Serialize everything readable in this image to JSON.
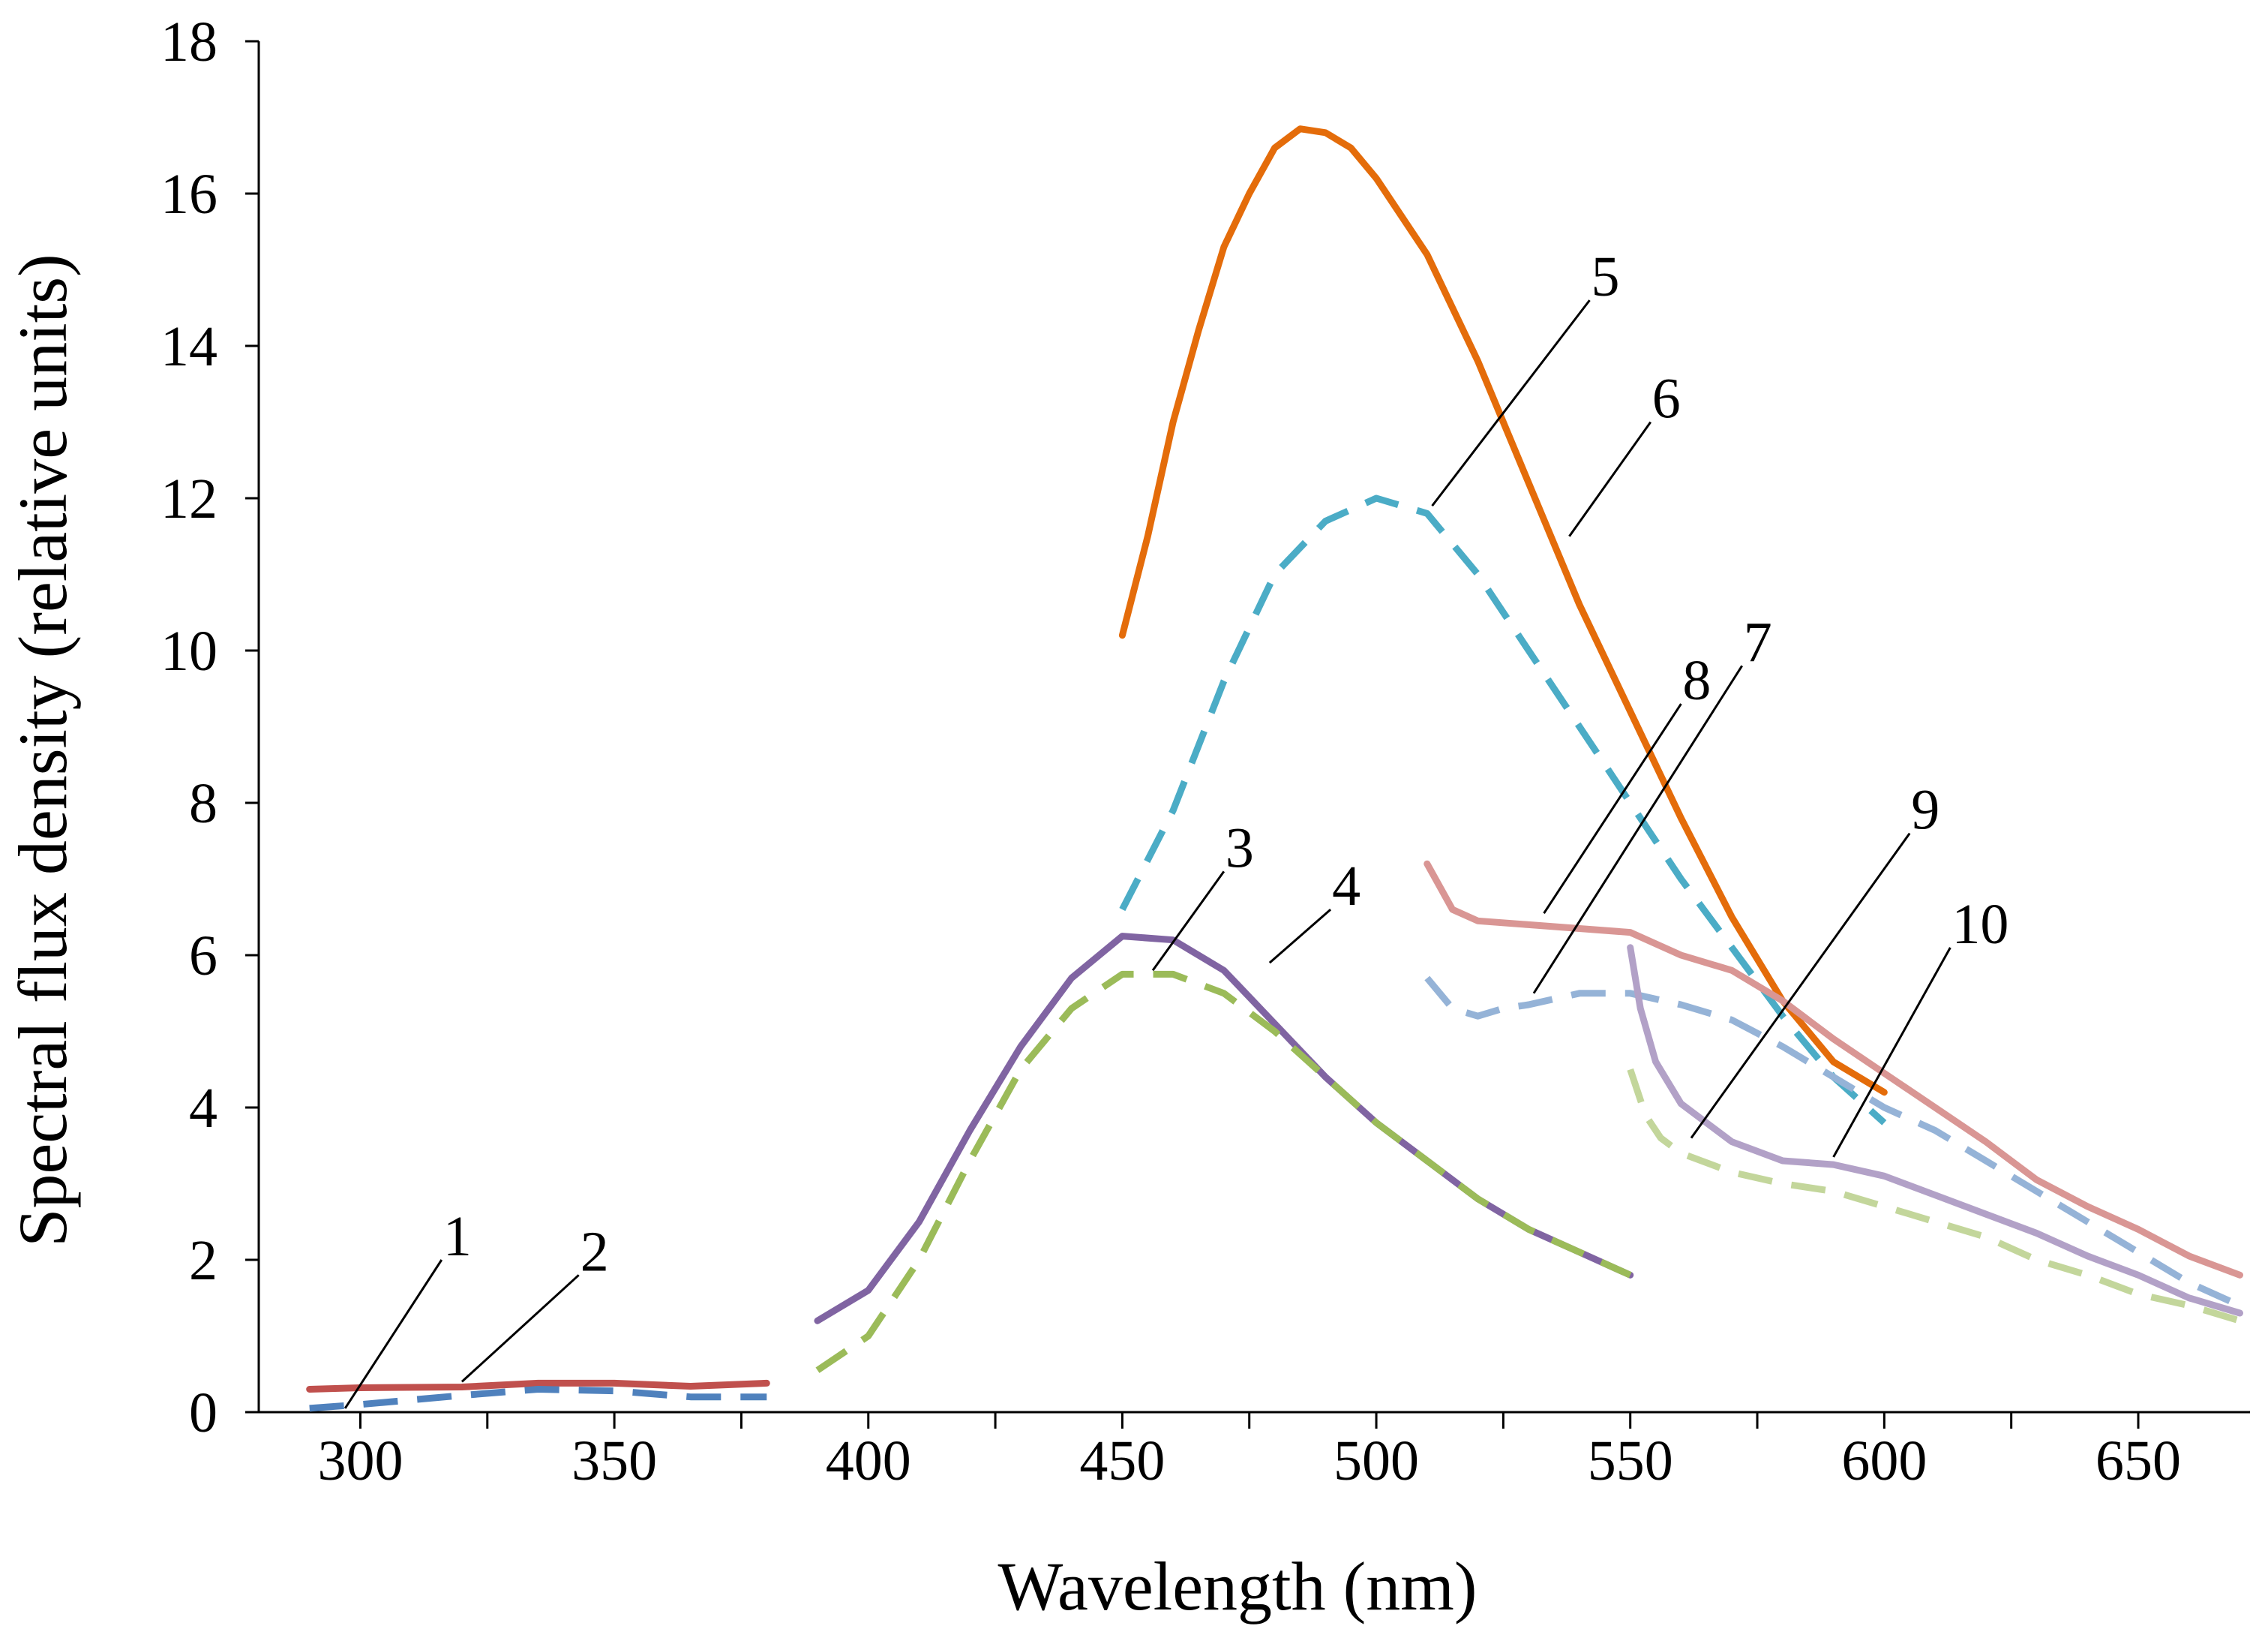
{
  "chart_data": {
    "type": "line",
    "title": "",
    "xlabel": "Wavelength (nm)",
    "ylabel": "Spectral flux density (relative units)",
    "xlim": [
      280,
      672
    ],
    "ylim": [
      0,
      18
    ],
    "x_ticks": [
      300,
      350,
      400,
      450,
      500,
      550,
      600,
      650
    ],
    "y_ticks": [
      0,
      2,
      4,
      6,
      8,
      10,
      12,
      14,
      16,
      18
    ],
    "grid": false,
    "series": [
      {
        "name": "1",
        "color": "#c0504d",
        "style": "solid",
        "x": [
          290,
          300,
          320,
          335,
          350,
          365,
          380
        ],
        "y": [
          0.3,
          0.32,
          0.33,
          0.38,
          0.38,
          0.34,
          0.38
        ]
      },
      {
        "name": "2",
        "color": "#4f81bd",
        "style": "dashed",
        "x": [
          290,
          300,
          320,
          335,
          350,
          365,
          380
        ],
        "y": [
          0.05,
          0.1,
          0.22,
          0.3,
          0.28,
          0.2,
          0.2
        ]
      },
      {
        "name": "3",
        "color": "#8064a2",
        "style": "solid",
        "x": [
          390,
          400,
          410,
          420,
          430,
          440,
          450,
          460,
          470,
          480,
          490,
          500,
          510,
          520,
          530,
          540,
          550
        ],
        "y": [
          1.2,
          1.6,
          2.5,
          3.7,
          4.8,
          5.7,
          6.25,
          6.2,
          5.8,
          5.1,
          4.4,
          3.8,
          3.3,
          2.8,
          2.4,
          2.1,
          1.8
        ]
      },
      {
        "name": "4",
        "color": "#9bbb59",
        "style": "dashed",
        "x": [
          390,
          400,
          410,
          420,
          430,
          440,
          450,
          460,
          470,
          480,
          490,
          500,
          510,
          520,
          530,
          540,
          550
        ],
        "y": [
          0.55,
          1.0,
          2.0,
          3.3,
          4.5,
          5.3,
          5.75,
          5.75,
          5.5,
          5.0,
          4.4,
          3.8,
          3.3,
          2.8,
          2.4,
          2.1,
          1.8
        ]
      },
      {
        "name": "5",
        "color": "#4bacc6",
        "style": "dashed",
        "x": [
          450,
          460,
          470,
          480,
          490,
          500,
          510,
          520,
          530,
          540,
          550,
          560,
          570,
          580,
          590,
          600
        ],
        "y": [
          6.6,
          7.9,
          9.6,
          11.0,
          11.7,
          12.0,
          11.8,
          11.0,
          10.0,
          9.0,
          8.0,
          7.0,
          6.1,
          5.2,
          4.4,
          3.8
        ]
      },
      {
        "name": "6",
        "color": "#e46c0a",
        "style": "solid",
        "x": [
          450,
          455,
          460,
          465,
          470,
          475,
          480,
          485,
          490,
          495,
          500,
          510,
          520,
          530,
          540,
          550,
          560,
          570,
          580,
          590,
          600
        ],
        "y": [
          10.2,
          11.5,
          13.0,
          14.2,
          15.3,
          16.0,
          16.6,
          16.85,
          16.8,
          16.6,
          16.2,
          15.2,
          13.8,
          12.2,
          10.6,
          9.2,
          7.8,
          6.5,
          5.4,
          4.6,
          4.2
        ]
      },
      {
        "name": "7",
        "color": "#95b3d7",
        "style": "dashed",
        "x": [
          510,
          515,
          520,
          525,
          530,
          540,
          550,
          560,
          570,
          580,
          590,
          600,
          610,
          620,
          630,
          640,
          650,
          660,
          670
        ],
        "y": [
          5.7,
          5.3,
          5.2,
          5.3,
          5.35,
          5.5,
          5.5,
          5.35,
          5.15,
          4.8,
          4.4,
          4.0,
          3.7,
          3.3,
          2.9,
          2.5,
          2.1,
          1.7,
          1.4
        ]
      },
      {
        "name": "8",
        "color": "#d99694",
        "style": "solid",
        "x": [
          510,
          515,
          520,
          530,
          540,
          550,
          560,
          570,
          580,
          590,
          600,
          610,
          620,
          630,
          640,
          650,
          660,
          670
        ],
        "y": [
          7.2,
          6.6,
          6.45,
          6.4,
          6.35,
          6.3,
          6.0,
          5.8,
          5.4,
          4.9,
          4.45,
          4.0,
          3.55,
          3.05,
          2.7,
          2.4,
          2.05,
          1.8
        ]
      },
      {
        "name": "9",
        "color": "#c3d69b",
        "style": "dashed",
        "x": [
          550,
          553,
          556,
          560,
          570,
          580,
          590,
          600,
          610,
          620,
          630,
          640,
          650,
          660,
          670
        ],
        "y": [
          4.5,
          3.9,
          3.6,
          3.4,
          3.15,
          3.0,
          2.9,
          2.7,
          2.5,
          2.3,
          2.0,
          1.8,
          1.55,
          1.4,
          1.2
        ]
      },
      {
        "name": "10",
        "color": "#b2a1c7",
        "style": "solid",
        "x": [
          550,
          552,
          555,
          560,
          570,
          580,
          590,
          600,
          610,
          620,
          630,
          640,
          650,
          660,
          670
        ],
        "y": [
          6.1,
          5.3,
          4.6,
          4.05,
          3.55,
          3.3,
          3.25,
          3.1,
          2.85,
          2.6,
          2.35,
          2.05,
          1.8,
          1.5,
          1.3
        ]
      }
    ],
    "annotations": [
      {
        "label": "1",
        "from": [
          297,
          0.05
        ],
        "to": [
          316,
          2.0
        ]
      },
      {
        "label": "2",
        "from": [
          320,
          0.4
        ],
        "to": [
          343,
          1.8
        ]
      },
      {
        "label": "3",
        "from": [
          456,
          5.8
        ],
        "to": [
          470,
          7.1
        ]
      },
      {
        "label": "4",
        "from": [
          479,
          5.9
        ],
        "to": [
          491,
          6.6
        ]
      },
      {
        "label": "5",
        "from": [
          511,
          11.9
        ],
        "to": [
          542,
          14.6
        ]
      },
      {
        "label": "6",
        "from": [
          538,
          11.5
        ],
        "to": [
          554,
          13.0
        ]
      },
      {
        "label": "7",
        "from": [
          531,
          5.5
        ],
        "to": [
          572,
          9.8
        ]
      },
      {
        "label": "8",
        "from": [
          533,
          6.55
        ],
        "to": [
          560,
          9.3
        ]
      },
      {
        "label": "9",
        "from": [
          562,
          3.6
        ],
        "to": [
          605,
          7.6
        ]
      },
      {
        "label": "10",
        "from": [
          590,
          3.35
        ],
        "to": [
          613,
          6.1
        ]
      }
    ]
  }
}
